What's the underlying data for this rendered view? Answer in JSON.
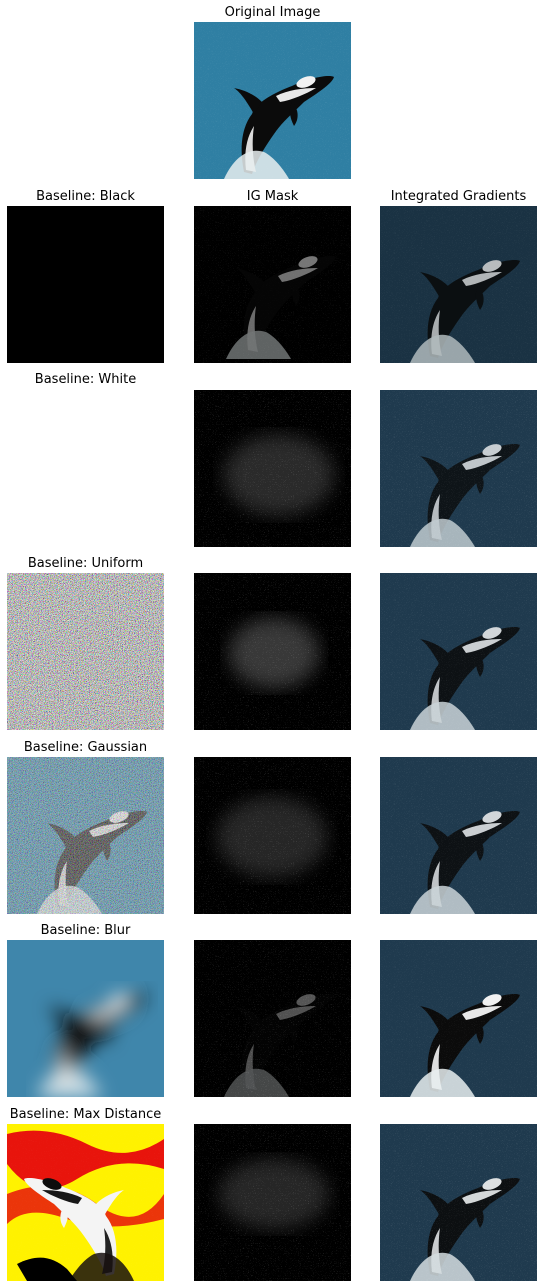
{
  "top": {
    "title": "Original Image"
  },
  "columns": {
    "mask": "IG Mask",
    "ig": "Integrated Gradients"
  },
  "rows": [
    {
      "baseline": "Baseline: Black"
    },
    {
      "baseline": "Baseline: White"
    },
    {
      "baseline": "Baseline: Uniform"
    },
    {
      "baseline": "Baseline: Gaussian"
    },
    {
      "baseline": "Baseline: Blur"
    },
    {
      "baseline": "Baseline: Max Distance"
    }
  ],
  "colors": {
    "water": "#2f7fa3",
    "water_dark": "#1f3a4e",
    "black": "#000000",
    "white": "#ffffff",
    "maxdist_red": "#e8140c",
    "maxdist_yellow": "#fff200"
  }
}
